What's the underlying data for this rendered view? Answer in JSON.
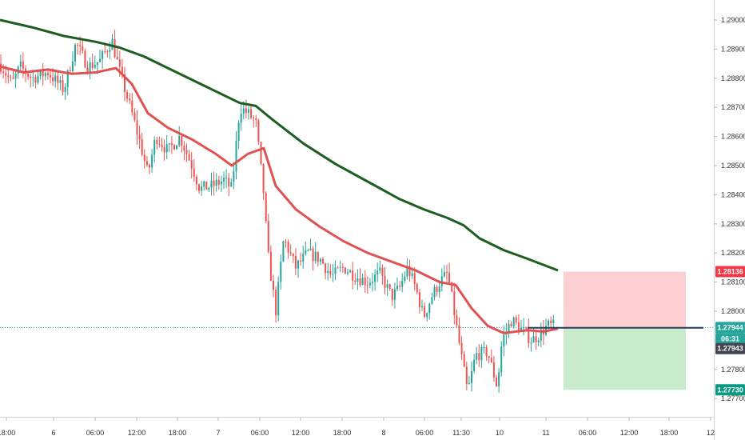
{
  "chart_data": {
    "type": "candlestick",
    "title": "",
    "xlabel": "",
    "ylabel": "",
    "ylim": [
      1.2765,
      1.2905
    ],
    "y_ticks": [
      "1.29000",
      "1.28900",
      "1.28800",
      "1.28700",
      "1.28600",
      "1.28500",
      "1.28400",
      "1.28300",
      "1.28200",
      "1.28100",
      "1.28000",
      "1.27800",
      "1.27700"
    ],
    "x_ticks": [
      "18:00",
      "6",
      "06:00",
      "12:00",
      "18:00",
      "7",
      "06:00",
      "12:00",
      "18:00",
      "8",
      "06:00",
      "11:30",
      "10",
      "11",
      "06:00",
      "12:00",
      "18:00",
      "12"
    ],
    "grid": false,
    "price_labels": [
      {
        "name": "stop-loss",
        "value": "1.28136",
        "color": "#f23645"
      },
      {
        "name": "current-price",
        "value": "1.27944",
        "color": "#26a69a"
      },
      {
        "name": "countdown",
        "value": "06:31",
        "color": "#26a69a"
      },
      {
        "name": "entry",
        "value": "1.27943",
        "color": "#434651"
      },
      {
        "name": "take-profit",
        "value": "1.27730",
        "color": "#089981"
      }
    ],
    "position": {
      "entry": 1.27943,
      "stop": 1.28136,
      "target": 1.2773
    },
    "series": [
      {
        "kind": "moving-average-slow",
        "color": "#1b5e20",
        "points": [
          [
            0,
            1.29
          ],
          [
            40,
            1.28975
          ],
          [
            80,
            1.28945
          ],
          [
            120,
            1.28925
          ],
          [
            150,
            1.28905
          ],
          [
            180,
            1.28875
          ],
          [
            210,
            1.28835
          ],
          [
            240,
            1.28795
          ],
          [
            270,
            1.28755
          ],
          [
            300,
            1.28715
          ],
          [
            320,
            1.28705
          ],
          [
            340,
            1.2866
          ],
          [
            380,
            1.28575
          ],
          [
            420,
            1.28505
          ],
          [
            460,
            1.28445
          ],
          [
            500,
            1.28385
          ],
          [
            530,
            1.2835
          ],
          [
            560,
            1.2832
          ],
          [
            580,
            1.28295
          ],
          [
            600,
            1.2825
          ],
          [
            630,
            1.2821
          ],
          [
            660,
            1.2818
          ],
          [
            698,
            1.2814
          ]
        ]
      },
      {
        "kind": "moving-average-fast",
        "color": "#e05252",
        "points": [
          [
            0,
            1.2884
          ],
          [
            30,
            1.2882
          ],
          [
            60,
            1.2883
          ],
          [
            90,
            1.28815
          ],
          [
            120,
            1.2882
          ],
          [
            145,
            1.28835
          ],
          [
            165,
            1.2878
          ],
          [
            185,
            1.2868
          ],
          [
            210,
            1.2863
          ],
          [
            240,
            1.2859
          ],
          [
            270,
            1.2854
          ],
          [
            290,
            1.285
          ],
          [
            310,
            1.2854
          ],
          [
            330,
            1.2856
          ],
          [
            345,
            1.2843
          ],
          [
            370,
            1.2835
          ],
          [
            400,
            1.2829
          ],
          [
            430,
            1.2824
          ],
          [
            460,
            1.282
          ],
          [
            490,
            1.2817
          ],
          [
            520,
            1.2814
          ],
          [
            550,
            1.281
          ],
          [
            570,
            1.2809
          ],
          [
            590,
            1.2801
          ],
          [
            610,
            1.2795
          ],
          [
            630,
            1.27925
          ],
          [
            660,
            1.27935
          ],
          [
            680,
            1.2793
          ],
          [
            698,
            1.2794
          ]
        ]
      },
      {
        "kind": "price-candles",
        "points": [
          [
            0,
            1.2885
          ],
          [
            15,
            1.2878
          ],
          [
            25,
            1.2884
          ],
          [
            40,
            1.288
          ],
          [
            60,
            1.2882
          ],
          [
            80,
            1.2876
          ],
          [
            95,
            1.2892
          ],
          [
            110,
            1.2884
          ],
          [
            125,
            1.2886
          ],
          [
            140,
            1.2893
          ],
          [
            150,
            1.2882
          ],
          [
            165,
            1.2868
          ],
          [
            175,
            1.2858
          ],
          [
            185,
            1.2847
          ],
          [
            195,
            1.286
          ],
          [
            210,
            1.2855
          ],
          [
            225,
            1.286
          ],
          [
            240,
            1.285
          ],
          [
            250,
            1.2842
          ],
          [
            265,
            1.2843
          ],
          [
            280,
            1.2845
          ],
          [
            290,
            1.2842
          ],
          [
            300,
            1.287
          ],
          [
            310,
            1.2868
          ],
          [
            320,
            1.2865
          ],
          [
            330,
            1.284
          ],
          [
            335,
            1.282
          ],
          [
            345,
            1.28
          ],
          [
            355,
            1.2825
          ],
          [
            370,
            1.2815
          ],
          [
            385,
            1.282
          ],
          [
            400,
            1.2818
          ],
          [
            415,
            1.2812
          ],
          [
            430,
            1.2815
          ],
          [
            445,
            1.2812
          ],
          [
            460,
            1.281
          ],
          [
            475,
            1.2813
          ],
          [
            490,
            1.2805
          ],
          [
            500,
            1.2808
          ],
          [
            510,
            1.2815
          ],
          [
            520,
            1.2808
          ],
          [
            530,
            1.2798
          ],
          [
            540,
            1.2805
          ],
          [
            550,
            1.281
          ],
          [
            560,
            1.2813
          ],
          [
            568,
            1.28
          ],
          [
            575,
            1.2788
          ],
          [
            585,
            1.2772
          ],
          [
            595,
            1.2785
          ],
          [
            610,
            1.2786
          ],
          [
            622,
            1.2774
          ],
          [
            628,
            1.279
          ],
          [
            640,
            1.2797
          ],
          [
            655,
            1.2793
          ],
          [
            665,
            1.279
          ],
          [
            675,
            1.2792
          ],
          [
            685,
            1.2795
          ],
          [
            695,
            1.2795
          ]
        ]
      }
    ]
  }
}
